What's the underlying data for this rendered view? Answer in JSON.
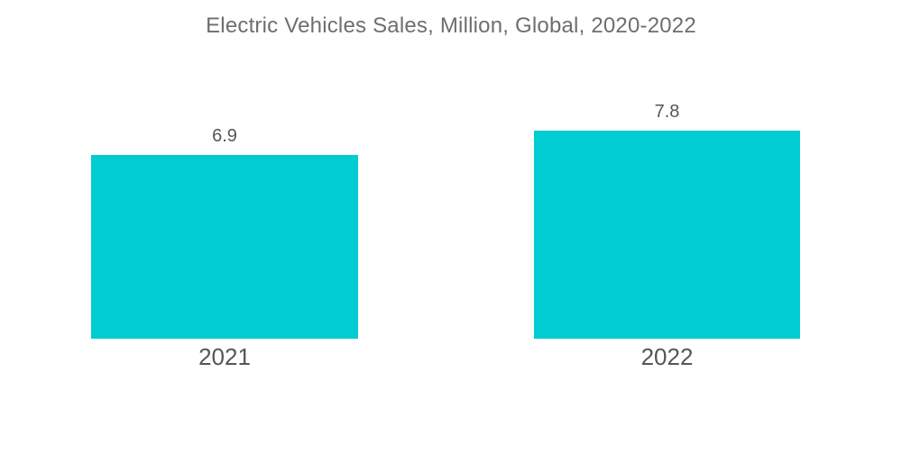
{
  "page": {
    "background": "#FFFFFF"
  },
  "chart_data": {
    "type": "bar",
    "title": "Electric Vehicles Sales, Million, Global, 2020-2022",
    "categories": [
      "2021",
      "2022"
    ],
    "values": [
      6.9,
      7.8
    ],
    "value_labels": [
      "6.9",
      "7.8"
    ],
    "xlabel": "",
    "ylabel": "",
    "ylim": [
      0,
      7.8
    ],
    "grid": false,
    "legend": false,
    "bar_color": "#00CCD2",
    "title_color": "#6D6E71",
    "label_color": "#555659"
  }
}
